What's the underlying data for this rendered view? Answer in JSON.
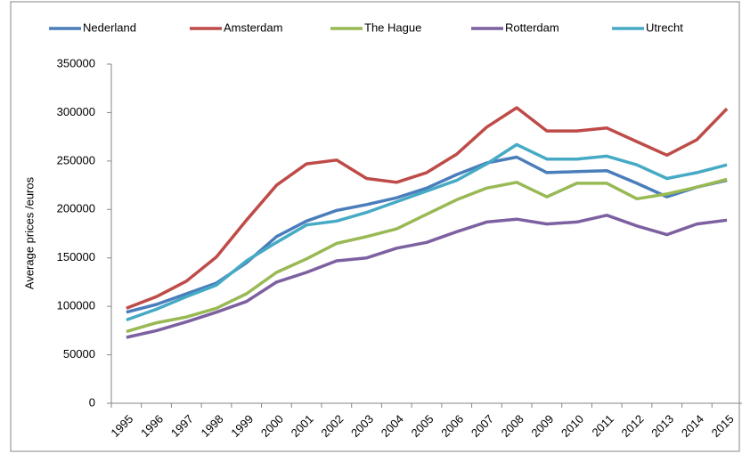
{
  "chart_data": {
    "type": "line",
    "y_label": "Average prices /euros",
    "categories": [
      "1995",
      "1996",
      "1997",
      "1998",
      "1999",
      "2000",
      "2001",
      "2002",
      "2003",
      "2004",
      "2005",
      "2006",
      "2007",
      "2008",
      "2009",
      "2010",
      "2011",
      "2012",
      "2013",
      "2014",
      "2015"
    ],
    "series": [
      {
        "name": "Nederland",
        "color": "#4a7ebb",
        "values": [
          94000,
          102000,
          113000,
          124000,
          145000,
          172000,
          188000,
          199000,
          205000,
          212000,
          222000,
          236000,
          248000,
          254000,
          238000,
          239000,
          240000,
          227000,
          213000,
          223000,
          230000
        ]
      },
      {
        "name": "Amsterdam",
        "color": "#be4b48",
        "values": [
          98000,
          110000,
          126000,
          151000,
          189000,
          225000,
          247000,
          251000,
          232000,
          228000,
          238000,
          257000,
          285000,
          305000,
          281000,
          281000,
          284000,
          270000,
          256000,
          272000,
          304000
        ]
      },
      {
        "name": "The Hague",
        "color": "#98b954",
        "values": [
          74000,
          83000,
          89000,
          98000,
          113000,
          135000,
          149000,
          165000,
          172000,
          180000,
          195000,
          210000,
          222000,
          228000,
          213000,
          227000,
          227000,
          211000,
          216000,
          223000,
          231000
        ]
      },
      {
        "name": "Rotterdam",
        "color": "#7d60a0",
        "values": [
          68000,
          75000,
          84000,
          94000,
          105000,
          125000,
          135000,
          147000,
          150000,
          160000,
          166000,
          177000,
          187000,
          190000,
          185000,
          187000,
          194000,
          183000,
          174000,
          185000,
          189000
        ]
      },
      {
        "name": "Utrecht",
        "color": "#46aac5",
        "values": [
          86000,
          97000,
          110000,
          122000,
          147000,
          166000,
          184000,
          188000,
          197000,
          208000,
          219000,
          230000,
          247000,
          267000,
          252000,
          252000,
          255000,
          246000,
          232000,
          238000,
          246000
        ]
      }
    ],
    "ylim": [
      0,
      350000
    ],
    "yticks": [
      0,
      50000,
      100000,
      150000,
      200000,
      250000,
      300000,
      350000
    ],
    "grid": false,
    "legend": "top"
  }
}
